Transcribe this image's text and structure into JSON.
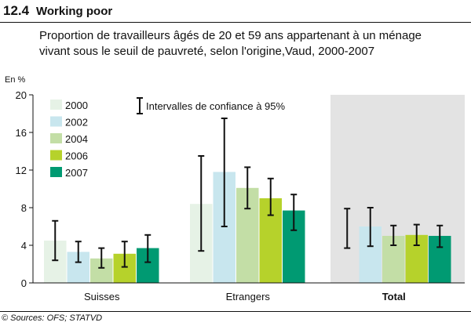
{
  "figure": {
    "number": "12.4",
    "title": "Working poor",
    "subtitle_line1": "Proportion de travailleurs âgés de 20 et 59 ans appartenant à un ménage",
    "subtitle_line2": "vivant sous le seuil de pauvreté, selon l'origine,Vaud, 2000-2007",
    "unit": "En %",
    "source": "© Sources: OFS; STATVD"
  },
  "chart_data": {
    "type": "bar",
    "categories": [
      "Suisses",
      "Etrangers",
      "Total"
    ],
    "series": [
      {
        "name": "2000",
        "color": "#e6f2e6",
        "values": [
          4.5,
          8.4,
          null
        ],
        "ci_low": [
          2.4,
          3.4,
          3.7
        ],
        "ci_high": [
          6.6,
          13.5,
          7.9
        ]
      },
      {
        "name": "2002",
        "color": "#c8e6ee",
        "values": [
          3.3,
          11.8,
          6.0
        ],
        "ci_low": [
          2.2,
          6.0,
          3.9
        ],
        "ci_high": [
          4.4,
          17.5,
          8.0
        ]
      },
      {
        "name": "2004",
        "color": "#c3dea6",
        "values": [
          2.6,
          10.1,
          5.0
        ],
        "ci_low": [
          1.6,
          7.9,
          4.0
        ],
        "ci_high": [
          3.7,
          12.3,
          6.1
        ]
      },
      {
        "name": "2006",
        "color": "#b6d22b",
        "values": [
          3.1,
          9.0,
          5.1
        ],
        "ci_low": [
          1.7,
          7.2,
          4.0
        ],
        "ci_high": [
          4.4,
          11.1,
          6.2
        ]
      },
      {
        "name": "2007",
        "color": "#009a72",
        "values": [
          3.7,
          7.7,
          5.0
        ],
        "ci_low": [
          2.2,
          5.6,
          3.8
        ],
        "ci_high": [
          5.1,
          9.4,
          6.1
        ]
      }
    ],
    "ylim": [
      0,
      20
    ],
    "yticks": [
      0,
      4,
      8,
      12,
      16,
      20
    ],
    "ci_label": "Intervalles de confiance à 95%",
    "highlight_color": "#e3e3e3",
    "legend_position": "top-left",
    "grid": false
  }
}
